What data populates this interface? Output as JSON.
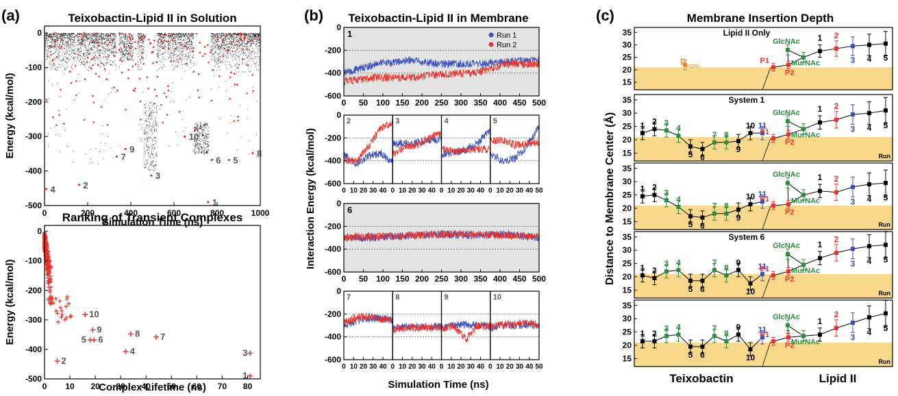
{
  "panel_labels": [
    "(a)",
    "(b)",
    "(c)"
  ],
  "colors": {
    "black": "#000000",
    "red": "#e8332a",
    "blue": "#3a4fb8",
    "green": "#2e8b3e",
    "orange": "#e8842a",
    "lipid_band": "#f8d88a",
    "gray_bg": "#e4e4e4",
    "gray_text": "#555555"
  },
  "chart_data": [
    {
      "id": "a_top",
      "type": "scatter",
      "title": "Teixobactin-Lipid II in Solution",
      "xlabel": "Simulation Time (ns)",
      "ylabel": "Energy (kcal/mol)",
      "xlim": [
        0,
        1000
      ],
      "ylim": [
        -500,
        20
      ],
      "xticks": [
        0,
        200,
        400,
        600,
        800,
        1000
      ],
      "yticks": [
        0,
        -100,
        -200,
        -300,
        -400,
        -500
      ],
      "series": [
        {
          "color": "black",
          "description": "dense trajectory points"
        },
        {
          "color": "red",
          "description": "transient complex minima"
        }
      ],
      "segments": [
        [
          0,
          140
        ],
        [
          150,
          330
        ],
        [
          345,
          410
        ],
        [
          430,
          560
        ],
        [
          570,
          760
        ],
        [
          770,
          1000
        ]
      ],
      "annotations": [
        {
          "label": "1",
          "x": 758,
          "y": -490
        },
        {
          "label": "2",
          "x": 160,
          "y": -440
        },
        {
          "label": "3",
          "x": 495,
          "y": -413
        },
        {
          "label": "4",
          "x": 8,
          "y": -452
        },
        {
          "label": "5",
          "x": 855,
          "y": -368
        },
        {
          "label": "6",
          "x": 775,
          "y": -368
        },
        {
          "label": "7",
          "x": 335,
          "y": -358
        },
        {
          "label": "8",
          "x": 965,
          "y": -348
        },
        {
          "label": "9",
          "x": 375,
          "y": -336
        },
        {
          "label": "10",
          "x": 650,
          "y": -300
        }
      ]
    },
    {
      "id": "a_bottom",
      "type": "scatter",
      "title": "Ranking of Transient Complexes",
      "xlabel": "Complex Lifetime (ns)",
      "ylabel": "Energy (kcal/mol)",
      "xlim": [
        0,
        85
      ],
      "ylim": [
        -500,
        20
      ],
      "xticks": [
        0,
        10,
        20,
        30,
        40,
        50,
        60,
        70,
        80
      ],
      "yticks": [
        0,
        -100,
        -200,
        -300,
        -400,
        -500
      ],
      "points": [
        {
          "label": "1",
          "x": 81,
          "y": -490
        },
        {
          "label": "2",
          "x": 5,
          "y": -440
        },
        {
          "label": "3",
          "x": 81,
          "y": -413
        },
        {
          "label": "4",
          "x": 32,
          "y": -407
        },
        {
          "label": "5",
          "x": 18,
          "y": -368
        },
        {
          "label": "6",
          "x": 19.5,
          "y": -368
        },
        {
          "label": "7",
          "x": 44,
          "y": -358
        },
        {
          "label": "8",
          "x": 34,
          "y": -348
        },
        {
          "label": "9",
          "x": 19,
          "y": -334
        },
        {
          "label": "10",
          "x": 16,
          "y": -282
        }
      ]
    },
    {
      "id": "b",
      "type": "line",
      "title": "Teixobactin-Lipid II in Membrane",
      "xlabel": "Simulation Time (ns)",
      "ylabel": "Interaction Energy (kcal/mol)",
      "legend": [
        "Run 1",
        "Run 2"
      ],
      "legend_position": "top-right",
      "long_xticks": [
        0,
        50,
        100,
        150,
        200,
        250,
        300,
        350,
        400,
        450,
        500
      ],
      "short_xticks": [
        0,
        10,
        20,
        30,
        40
      ],
      "short_xticks_last": [
        0,
        10,
        20,
        30,
        40,
        50
      ],
      "yticks": [
        0,
        -200,
        -400,
        -600
      ],
      "ylim": [
        -600,
        0
      ],
      "panels": [
        {
          "label": "1",
          "kind": "long",
          "run1_mean": [
            -400,
            -320,
            -290,
            -320,
            -320,
            -300,
            -290
          ],
          "run2_mean": [
            -470,
            -440,
            -440,
            -410,
            -400,
            -320,
            -320
          ]
        },
        {
          "label": "2",
          "kind": "short",
          "run1_mean": [
            -350,
            -430,
            -360,
            -330,
            -420
          ],
          "run2_mean": [
            -390,
            -400,
            -280,
            -120,
            -60
          ]
        },
        {
          "label": "3",
          "kind": "short",
          "run1_mean": [
            -250,
            -250,
            -240,
            -220,
            -210
          ],
          "run2_mean": [
            -340,
            -280,
            -260,
            -200,
            -150
          ]
        },
        {
          "label": "4",
          "kind": "short",
          "run1_mean": [
            -340,
            -330,
            -300,
            -240,
            -130
          ],
          "run2_mean": [
            -300,
            -320,
            -310,
            -300,
            -300
          ]
        },
        {
          "label": "5",
          "kind": "short",
          "run1_mean": [
            -340,
            -400,
            -380,
            -270,
            -100
          ],
          "run2_mean": [
            -230,
            -220,
            -260,
            -250,
            -230
          ]
        },
        {
          "label": "6",
          "kind": "long",
          "run1_mean": [
            -300,
            -300,
            -280,
            -270,
            -280,
            -270,
            -300
          ],
          "run2_mean": [
            -290,
            -290,
            -280,
            -270,
            -270,
            -280,
            -290
          ]
        },
        {
          "label": "7",
          "kind": "short",
          "run1_mean": [
            -310,
            -260,
            -240,
            -240,
            -250
          ],
          "run2_mean": [
            -280,
            -230,
            -220,
            -240,
            -250
          ]
        },
        {
          "label": "8",
          "kind": "short",
          "run1_mean": [
            -330,
            -310,
            -310,
            -310,
            -310
          ],
          "run2_mean": [
            -340,
            -320,
            -320,
            -320,
            -320
          ]
        },
        {
          "label": "9",
          "kind": "short",
          "run1_mean": [
            -320,
            -300,
            -290,
            -300,
            -310
          ],
          "run2_mean": [
            -330,
            -300,
            -420,
            -300,
            -310
          ]
        },
        {
          "label": "10",
          "kind": "short",
          "run1_mean": [
            -320,
            -300,
            -300,
            -290,
            -300
          ],
          "run2_mean": [
            -310,
            -290,
            -290,
            -280,
            -290
          ]
        }
      ]
    },
    {
      "id": "c",
      "type": "line",
      "title": "Membrane Insertion Depth",
      "ylabel": "Distance to Membrane Center (Å)",
      "xlabel_left": "Teixobactin",
      "xlabel_right": "Lipid II",
      "ylim": [
        12,
        37
      ],
      "yticks": [
        15,
        20,
        25,
        30,
        35
      ],
      "lipid_band": [
        12,
        21
      ],
      "run_label": "Run",
      "pope_label": "P",
      "pope_sub": "POPE",
      "glcnac_label": "GlcNAc",
      "murnac_label": "MurNAc",
      "p1_label": "P1",
      "p2_label": "P2",
      "teixo_colors": [
        "black",
        "black",
        "green",
        "green",
        "black",
        "black",
        "green",
        "green",
        "black",
        "black",
        "blue"
      ],
      "lipid_chain_labels": [
        "1",
        "2",
        "3",
        "4",
        "5"
      ],
      "lipid_chain_colors": [
        "black",
        "red",
        "blue",
        "black",
        "black"
      ],
      "panels": [
        {
          "title": "Lipid II Only",
          "teixo": null,
          "pope": 22,
          "p1": 21,
          "p2": 22,
          "glcnac": 28,
          "murnac": 25,
          "chain": [
            27.5,
            28.5,
            29.5,
            30,
            30.5
          ]
        },
        {
          "title": "System 1",
          "teixo": [
            22.5,
            24,
            23.5,
            21.5,
            17.5,
            16.5,
            19,
            19,
            19.5,
            22.5,
            22.5
          ],
          "p1": 20.5,
          "p2": 22,
          "glcnac": 27,
          "murnac": 24,
          "chain": [
            26.5,
            27.5,
            29.5,
            30,
            31
          ]
        },
        {
          "title": "",
          "teixo": [
            24.5,
            25,
            23,
            20.5,
            17,
            16.5,
            18,
            18,
            19.5,
            21.5,
            22.5
          ],
          "p1": 21,
          "p2": 21.5,
          "glcnac": 29.5,
          "murnac": 25,
          "chain": [
            26.5,
            26,
            28,
            29,
            29.5
          ]
        },
        {
          "title": "System 6",
          "teixo": [
            20.5,
            19.5,
            22,
            22.5,
            18.5,
            18.5,
            22.5,
            20.5,
            22.5,
            17.5,
            21
          ],
          "p1": 20.5,
          "p2": 22,
          "glcnac": 28.5,
          "murnac": 24.5,
          "chain": [
            27,
            29,
            30.5,
            31.5,
            32
          ]
        },
        {
          "title": "",
          "teixo": [
            21.5,
            21.5,
            23.5,
            24,
            19.5,
            19.5,
            23.5,
            21.5,
            24,
            18.5,
            23
          ],
          "p1": 21.5,
          "p2": 23,
          "glcnac": 27.5,
          "murnac": 23.5,
          "chain": [
            24,
            26.5,
            28.5,
            30.5,
            32
          ]
        }
      ]
    }
  ]
}
